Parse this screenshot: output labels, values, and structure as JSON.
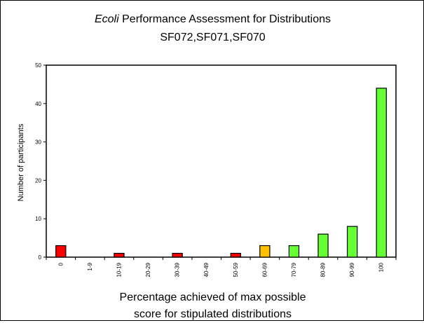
{
  "chart_data": {
    "type": "bar",
    "title_italic": "Ecoli",
    "title_rest": " Performance Assessment for Distributions",
    "subtitle": "SF072,SF071,SF070",
    "xlabel_line1": "Percentage achieved of max possible",
    "xlabel_line2": "score for stipulated distributions",
    "ylabel": "Number of participants",
    "ylim": [
      0,
      50
    ],
    "yticks": [
      "0",
      "10",
      "20",
      "30",
      "40",
      "50"
    ],
    "grid": false,
    "legend": "none",
    "categories": [
      "0",
      "1-9",
      "10-19",
      "20-29",
      "30-39",
      "40-49",
      "50-59",
      "60-69",
      "70-79",
      "80-89",
      "90-99",
      "100"
    ],
    "values": [
      3,
      0,
      1,
      0,
      1,
      0,
      1,
      3,
      3,
      6,
      8,
      44
    ],
    "bar_colors": [
      "#ff0000",
      "#ff0000",
      "#ff0000",
      "#ff0000",
      "#ff0000",
      "#ff0000",
      "#ff0000",
      "#ffc000",
      "#66ff33",
      "#66ff33",
      "#66ff33",
      "#66ff33"
    ]
  }
}
